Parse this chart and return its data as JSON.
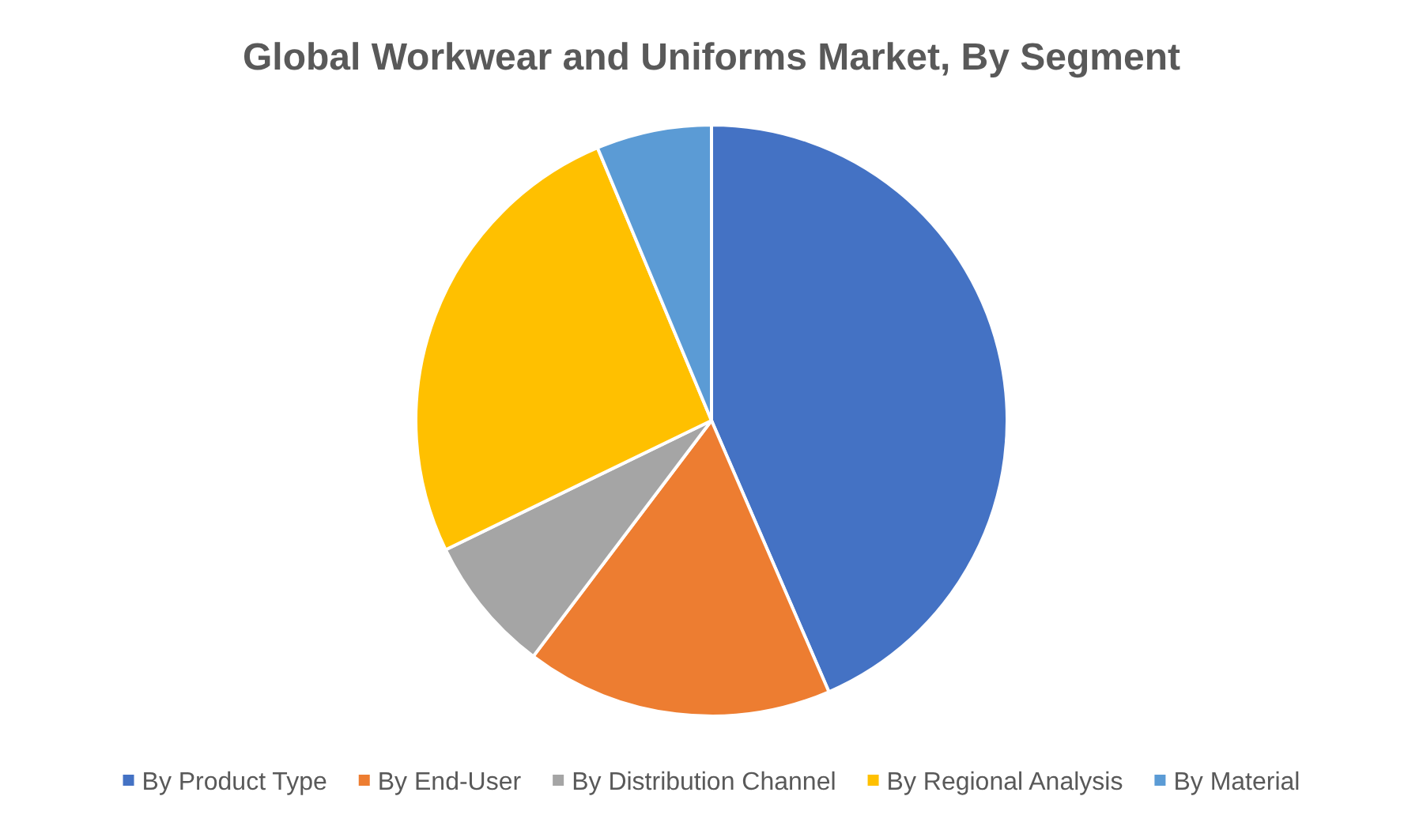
{
  "chart_data": {
    "type": "pie",
    "title": "Global Workwear and Uniforms Market, By Segment",
    "categories": [
      "By Product Type",
      "By End-User",
      "By Distribution Channel",
      "By Regional Analysis",
      "By Material"
    ],
    "values": [
      43.5,
      16.8,
      7.5,
      25.9,
      6.3
    ],
    "colors": [
      "#4472c4",
      "#ed7d31",
      "#a5a5a5",
      "#ffc000",
      "#5b9bd5"
    ],
    "legend": "bottom"
  }
}
